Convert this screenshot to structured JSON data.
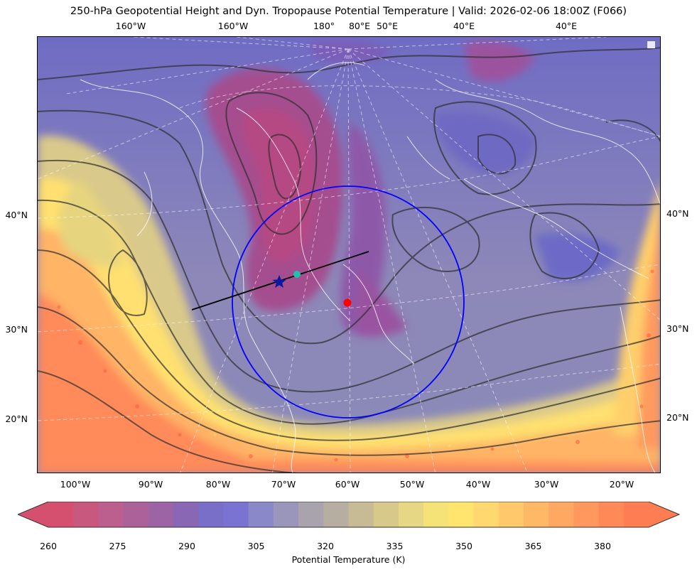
{
  "title": "250-hPa Geopotential Height and Dyn. Tropopause Potential Temperature   |  Valid: 2026-02-06 18:00Z (F066)",
  "top_lon_labels": [
    "160°W",
    "160°W",
    "180°",
    "80°E",
    "50°E",
    "40°E",
    "40°E"
  ],
  "bottom_lon_labels": [
    "100°W",
    "90°W",
    "80°W",
    "70°W",
    "60°W",
    "50°W",
    "40°W",
    "30°W",
    "20°W"
  ],
  "left_lat_labels": [
    "40°N",
    "30°N",
    "20°N"
  ],
  "right_lat_labels": [
    "40°N",
    "30°N",
    "20°N"
  ],
  "colorbar": {
    "label": "Potential Temperature (K)",
    "ticks": [
      "260",
      "275",
      "290",
      "305",
      "320",
      "335",
      "350",
      "365",
      "380"
    ],
    "range": [
      260,
      390
    ],
    "colors": [
      "#d4506e",
      "#c9587e",
      "#bc5f8e",
      "#ac6199",
      "#9c64a4",
      "#8a67b4",
      "#7a6fc8",
      "#7b73d1",
      "#8a88c9",
      "#9a96ba",
      "#a9a3ad",
      "#b6aea0",
      "#c6bb94",
      "#d6c98a",
      "#e6d785",
      "#f5e377",
      "#ffe56e",
      "#ffd870",
      "#ffc86b",
      "#ffb866",
      "#ffa862",
      "#ff985e",
      "#ff8a58",
      "#ff7d52"
    ]
  },
  "markers": {
    "star": "blue-star",
    "red_point": "red-circle",
    "cyan_point": "cyan-circle"
  },
  "colors": {
    "circle": "#0000ff",
    "cross_section_line": "#000000",
    "contour": "#2e2e2e",
    "coastline": "#ffffff"
  }
}
